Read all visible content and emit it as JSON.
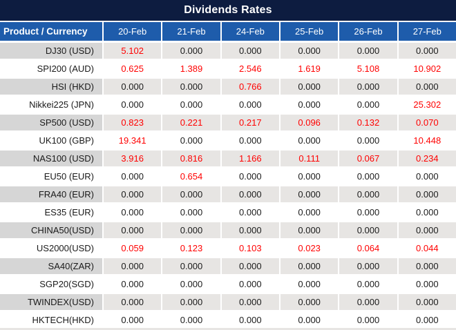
{
  "title": "Dividends Rates",
  "colors": {
    "navy": "#0d1c40",
    "header-blue": "#1e5cab",
    "stripe-col1": "#d6d6d6",
    "stripe-cell": "#e7e5e3",
    "red": "#ff0000",
    "text-black": "#1a1a1a"
  },
  "table": {
    "corner_header": "Product / Currency",
    "date_headers": [
      "20-Feb",
      "21-Feb",
      "24-Feb",
      "25-Feb",
      "26-Feb",
      "27-Feb"
    ],
    "rows": [
      {
        "product": "DJ30 (USD)",
        "values": [
          "5.102",
          "0.000",
          "0.000",
          "0.000",
          "0.000",
          "0.000"
        ]
      },
      {
        "product": "SPI200 (AUD)",
        "values": [
          "0.625",
          "1.389",
          "2.546",
          "1.619",
          "5.108",
          "10.902"
        ]
      },
      {
        "product": "HSI (HKD)",
        "values": [
          "0.000",
          "0.000",
          "0.766",
          "0.000",
          "0.000",
          "0.000"
        ]
      },
      {
        "product": "Nikkei225 (JPN)",
        "values": [
          "0.000",
          "0.000",
          "0.000",
          "0.000",
          "0.000",
          "25.302"
        ]
      },
      {
        "product": "SP500 (USD)",
        "values": [
          "0.823",
          "0.221",
          "0.217",
          "0.096",
          "0.132",
          "0.070"
        ]
      },
      {
        "product": "UK100 (GBP)",
        "values": [
          "19.341",
          "0.000",
          "0.000",
          "0.000",
          "0.000",
          "10.448"
        ]
      },
      {
        "product": "NAS100 (USD)",
        "values": [
          "3.916",
          "0.816",
          "1.166",
          "0.111",
          "0.067",
          "0.234"
        ]
      },
      {
        "product": "EU50 (EUR)",
        "values": [
          "0.000",
          "0.654",
          "0.000",
          "0.000",
          "0.000",
          "0.000"
        ]
      },
      {
        "product": "FRA40 (EUR)",
        "values": [
          "0.000",
          "0.000",
          "0.000",
          "0.000",
          "0.000",
          "0.000"
        ]
      },
      {
        "product": "ES35 (EUR)",
        "values": [
          "0.000",
          "0.000",
          "0.000",
          "0.000",
          "0.000",
          "0.000"
        ]
      },
      {
        "product": "CHINA50(USD)",
        "values": [
          "0.000",
          "0.000",
          "0.000",
          "0.000",
          "0.000",
          "0.000"
        ]
      },
      {
        "product": "US2000(USD)",
        "values": [
          "0.059",
          "0.123",
          "0.103",
          "0.023",
          "0.064",
          "0.044"
        ]
      },
      {
        "product": "SA40(ZAR)",
        "values": [
          "0.000",
          "0.000",
          "0.000",
          "0.000",
          "0.000",
          "0.000"
        ]
      },
      {
        "product": "SGP20(SGD)",
        "values": [
          "0.000",
          "0.000",
          "0.000",
          "0.000",
          "0.000",
          "0.000"
        ]
      },
      {
        "product": "TWINDEX(USD)",
        "values": [
          "0.000",
          "0.000",
          "0.000",
          "0.000",
          "0.000",
          "0.000"
        ]
      },
      {
        "product": "HKTECH(HKD)",
        "values": [
          "0.000",
          "0.000",
          "0.000",
          "0.000",
          "0.000",
          "0.000"
        ]
      }
    ]
  },
  "chart_data": {
    "type": "table",
    "title": "Dividends Rates",
    "columns": [
      "Product / Currency",
      "20-Feb",
      "21-Feb",
      "24-Feb",
      "25-Feb",
      "26-Feb",
      "27-Feb"
    ],
    "rows": [
      [
        "DJ30 (USD)",
        5.102,
        0.0,
        0.0,
        0.0,
        0.0,
        0.0
      ],
      [
        "SPI200 (AUD)",
        0.625,
        1.389,
        2.546,
        1.619,
        5.108,
        10.902
      ],
      [
        "HSI (HKD)",
        0.0,
        0.0,
        0.766,
        0.0,
        0.0,
        0.0
      ],
      [
        "Nikkei225 (JPN)",
        0.0,
        0.0,
        0.0,
        0.0,
        0.0,
        25.302
      ],
      [
        "SP500 (USD)",
        0.823,
        0.221,
        0.217,
        0.096,
        0.132,
        0.07
      ],
      [
        "UK100 (GBP)",
        19.341,
        0.0,
        0.0,
        0.0,
        0.0,
        10.448
      ],
      [
        "NAS100 (USD)",
        3.916,
        0.816,
        1.166,
        0.111,
        0.067,
        0.234
      ],
      [
        "EU50 (EUR)",
        0.0,
        0.654,
        0.0,
        0.0,
        0.0,
        0.0
      ],
      [
        "FRA40 (EUR)",
        0.0,
        0.0,
        0.0,
        0.0,
        0.0,
        0.0
      ],
      [
        "ES35 (EUR)",
        0.0,
        0.0,
        0.0,
        0.0,
        0.0,
        0.0
      ],
      [
        "CHINA50(USD)",
        0.0,
        0.0,
        0.0,
        0.0,
        0.0,
        0.0
      ],
      [
        "US2000(USD)",
        0.059,
        0.123,
        0.103,
        0.023,
        0.064,
        0.044
      ],
      [
        "SA40(ZAR)",
        0.0,
        0.0,
        0.0,
        0.0,
        0.0,
        0.0
      ],
      [
        "SGP20(SGD)",
        0.0,
        0.0,
        0.0,
        0.0,
        0.0,
        0.0
      ],
      [
        "TWINDEX(USD)",
        0.0,
        0.0,
        0.0,
        0.0,
        0.0,
        0.0
      ],
      [
        "HKTECH(HKD)",
        0.0,
        0.0,
        0.0,
        0.0,
        0.0,
        0.0
      ]
    ],
    "notes": "Non-zero values are rendered in red; zeros in black. Odd rows gray-striped."
  }
}
